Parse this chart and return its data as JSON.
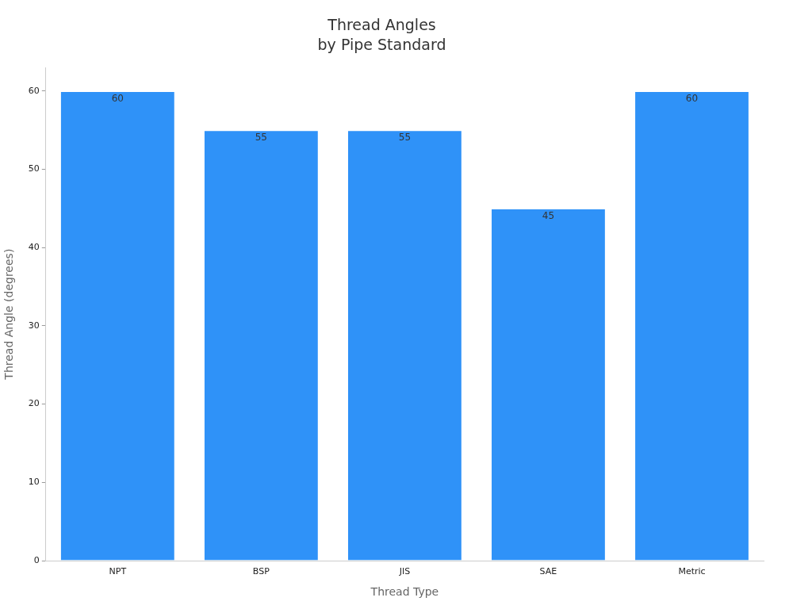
{
  "chart_data": {
    "type": "bar",
    "title": "Thread Angles\nby Pipe Standard",
    "xlabel": "Thread Type",
    "ylabel": "Thread Angle (degrees)",
    "categories": [
      "NPT",
      "BSP",
      "JIS",
      "SAE",
      "Metric"
    ],
    "values": [
      60,
      55,
      55,
      45,
      60
    ],
    "color": "#2f92f8",
    "ylim": [
      0,
      63
    ],
    "yticks": [
      0,
      10,
      20,
      30,
      40,
      50,
      60
    ],
    "grid": false,
    "data_labels": true
  }
}
